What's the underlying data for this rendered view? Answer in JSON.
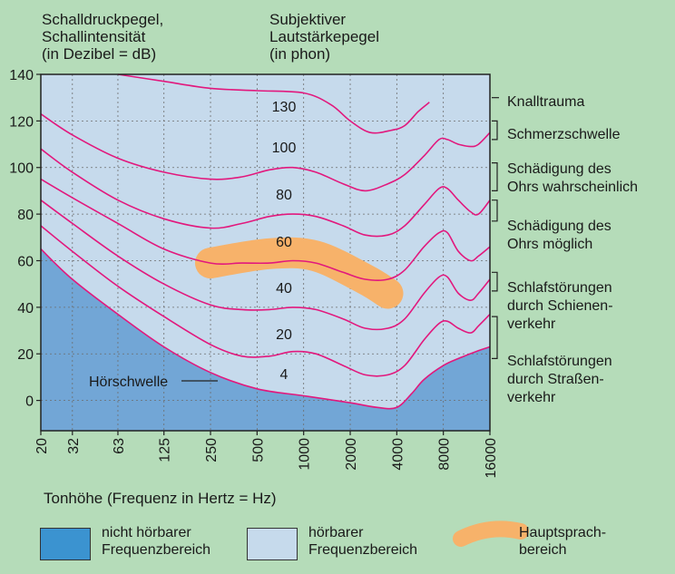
{
  "header": {
    "left_line1": "Schalldruckpegel,",
    "left_line2": "Schallintensität",
    "left_line3": "(in Dezibel = dB)",
    "right_line1": "Subjektiver",
    "right_line2": "Lautstärkepegel",
    "right_line3": "(in phon)"
  },
  "x_axis_label": "Tonhöhe (Frequenz in Hertz = Hz)",
  "hoerschwelle_label": "Hörschwelle",
  "colors": {
    "background": "#b5dcb9",
    "plot_audible": "#c6daec",
    "plot_inaudible": "#72a6d6",
    "curve": "#e2187d",
    "speech_region": "#f7b26a",
    "legend_inaudible": "#3b93d0"
  },
  "chart_data": {
    "type": "line",
    "title": "",
    "xlabel": "Tonhöhe (Frequenz in Hertz = Hz)",
    "ylabel": "Schalldruckpegel, Schallintensität (in Dezibel = dB)",
    "x_scale": "log",
    "x_ticks": [
      20,
      32,
      63,
      125,
      250,
      500,
      1000,
      2000,
      4000,
      8000,
      16000
    ],
    "x_tick_labels": [
      "20",
      "32",
      "63",
      "125",
      "250",
      "500",
      "1000",
      "2000",
      "4000",
      "8000",
      "16000"
    ],
    "xlim": [
      20,
      16000
    ],
    "y_ticks": [
      0,
      20,
      40,
      60,
      80,
      100,
      120,
      140
    ],
    "y_tick_labels": [
      "0",
      "20",
      "40",
      "60",
      "80",
      "100",
      "120",
      "140"
    ],
    "ylim": [
      -13,
      140
    ],
    "series": [
      {
        "name": "4",
        "points": [
          [
            20,
            65
          ],
          [
            32,
            52
          ],
          [
            63,
            37
          ],
          [
            125,
            23
          ],
          [
            250,
            12
          ],
          [
            500,
            5
          ],
          [
            1000,
            2
          ],
          [
            2000,
            -1
          ],
          [
            3000,
            -3
          ],
          [
            4000,
            -3
          ],
          [
            5000,
            3
          ],
          [
            6000,
            9
          ],
          [
            8000,
            15
          ],
          [
            10000,
            18
          ],
          [
            13000,
            21
          ],
          [
            16000,
            23
          ]
        ]
      },
      {
        "name": "20",
        "points": [
          [
            20,
            75
          ],
          [
            32,
            64
          ],
          [
            63,
            49
          ],
          [
            125,
            36
          ],
          [
            250,
            24
          ],
          [
            400,
            19
          ],
          [
            600,
            19
          ],
          [
            850,
            21
          ],
          [
            1200,
            20
          ],
          [
            1800,
            15
          ],
          [
            2500,
            11
          ],
          [
            3500,
            11
          ],
          [
            4500,
            15
          ],
          [
            6000,
            26
          ],
          [
            7500,
            33
          ],
          [
            8500,
            34
          ],
          [
            10000,
            31
          ],
          [
            12000,
            29
          ],
          [
            13500,
            32
          ],
          [
            16000,
            37
          ]
        ]
      },
      {
        "name": "40",
        "points": [
          [
            20,
            86
          ],
          [
            32,
            76
          ],
          [
            63,
            62
          ],
          [
            125,
            50
          ],
          [
            250,
            41
          ],
          [
            400,
            39
          ],
          [
            600,
            39
          ],
          [
            850,
            40
          ],
          [
            1200,
            39
          ],
          [
            1800,
            35
          ],
          [
            2500,
            31
          ],
          [
            3500,
            31
          ],
          [
            4500,
            35
          ],
          [
            6000,
            46
          ],
          [
            7500,
            53
          ],
          [
            8500,
            53
          ],
          [
            10000,
            46
          ],
          [
            12000,
            43
          ],
          [
            13500,
            46
          ],
          [
            16000,
            52
          ]
        ]
      },
      {
        "name": "60",
        "points": [
          [
            20,
            95
          ],
          [
            32,
            87
          ],
          [
            63,
            76
          ],
          [
            125,
            65
          ],
          [
            250,
            59
          ],
          [
            400,
            59
          ],
          [
            600,
            59
          ],
          [
            850,
            60
          ],
          [
            1200,
            59
          ],
          [
            1800,
            55
          ],
          [
            2500,
            52
          ],
          [
            3500,
            52
          ],
          [
            4500,
            56
          ],
          [
            6000,
            66
          ],
          [
            7500,
            72
          ],
          [
            8500,
            72
          ],
          [
            10000,
            64
          ],
          [
            12000,
            60
          ],
          [
            13500,
            62
          ],
          [
            16000,
            66
          ]
        ]
      },
      {
        "name": "80",
        "points": [
          [
            20,
            108
          ],
          [
            32,
            98
          ],
          [
            63,
            86
          ],
          [
            125,
            78
          ],
          [
            250,
            74
          ],
          [
            400,
            76
          ],
          [
            600,
            79
          ],
          [
            850,
            80
          ],
          [
            1200,
            79
          ],
          [
            1800,
            75
          ],
          [
            2500,
            71
          ],
          [
            3500,
            71
          ],
          [
            4500,
            75
          ],
          [
            6000,
            84
          ],
          [
            7500,
            91
          ],
          [
            8500,
            91
          ],
          [
            10000,
            86
          ],
          [
            12000,
            81
          ],
          [
            13500,
            80
          ],
          [
            16000,
            86
          ]
        ]
      },
      {
        "name": "100",
        "points": [
          [
            20,
            123
          ],
          [
            32,
            114
          ],
          [
            63,
            104
          ],
          [
            125,
            98
          ],
          [
            250,
            95
          ],
          [
            400,
            96
          ],
          [
            600,
            99
          ],
          [
            850,
            100
          ],
          [
            1200,
            98
          ],
          [
            1800,
            93
          ],
          [
            2500,
            90
          ],
          [
            3500,
            93
          ],
          [
            4500,
            97
          ],
          [
            6000,
            105
          ],
          [
            7500,
            112
          ],
          [
            8500,
            112
          ],
          [
            10000,
            110
          ],
          [
            12000,
            109
          ],
          [
            13500,
            110
          ],
          [
            16000,
            115
          ]
        ]
      },
      {
        "name": "130",
        "points": [
          [
            63,
            140
          ],
          [
            125,
            137
          ],
          [
            250,
            134
          ],
          [
            500,
            133
          ],
          [
            1000,
            132
          ],
          [
            1500,
            127
          ],
          [
            2000,
            120
          ],
          [
            2700,
            115
          ],
          [
            3700,
            116
          ],
          [
            4500,
            118
          ],
          [
            5500,
            124
          ],
          [
            6500,
            128
          ]
        ]
      }
    ],
    "curve_labels": [
      "130",
      "100",
      "80",
      "60",
      "40",
      "20",
      "4"
    ],
    "annotations": [
      {
        "text": [
          "Knalltrauma"
        ],
        "level_db": 130
      },
      {
        "text": [
          "Schmerzschwelle"
        ],
        "range_db": [
          112,
          120
        ]
      },
      {
        "text": [
          "Schädigung des",
          "Ohrs wahrscheinlich"
        ],
        "range_db": [
          90,
          102
        ]
      },
      {
        "text": [
          "Schädigung des",
          "Ohrs möglich"
        ],
        "range_db": [
          77,
          86
        ]
      },
      {
        "text": [
          "Schlafstörungen",
          "durch Schienen-",
          "verkehr"
        ],
        "range_db": [
          47,
          55
        ]
      },
      {
        "text": [
          "Schlafstörungen",
          "durch Straßen-",
          "verkehr"
        ],
        "range_db": [
          18,
          36
        ]
      }
    ],
    "regions": [
      {
        "name": "nicht hörbarer Frequenzbereich",
        "below": "4"
      },
      {
        "name": "hörbarer Frequenzbereich",
        "above": "4"
      },
      {
        "name": "Hauptsprachbereich",
        "center": [
          [
            250,
            59
          ],
          [
            600,
            63
          ],
          [
            1200,
            62
          ],
          [
            2500,
            52
          ],
          [
            3500,
            46
          ]
        ]
      }
    ]
  },
  "legend": {
    "inaudible_line1": "nicht hörbarer",
    "inaudible_line2": "Frequenzbereich",
    "audible_line1": "hörbarer",
    "audible_line2": "Frequenzbereich",
    "speech_line1": "Hauptsprach-",
    "speech_line2": "bereich"
  }
}
